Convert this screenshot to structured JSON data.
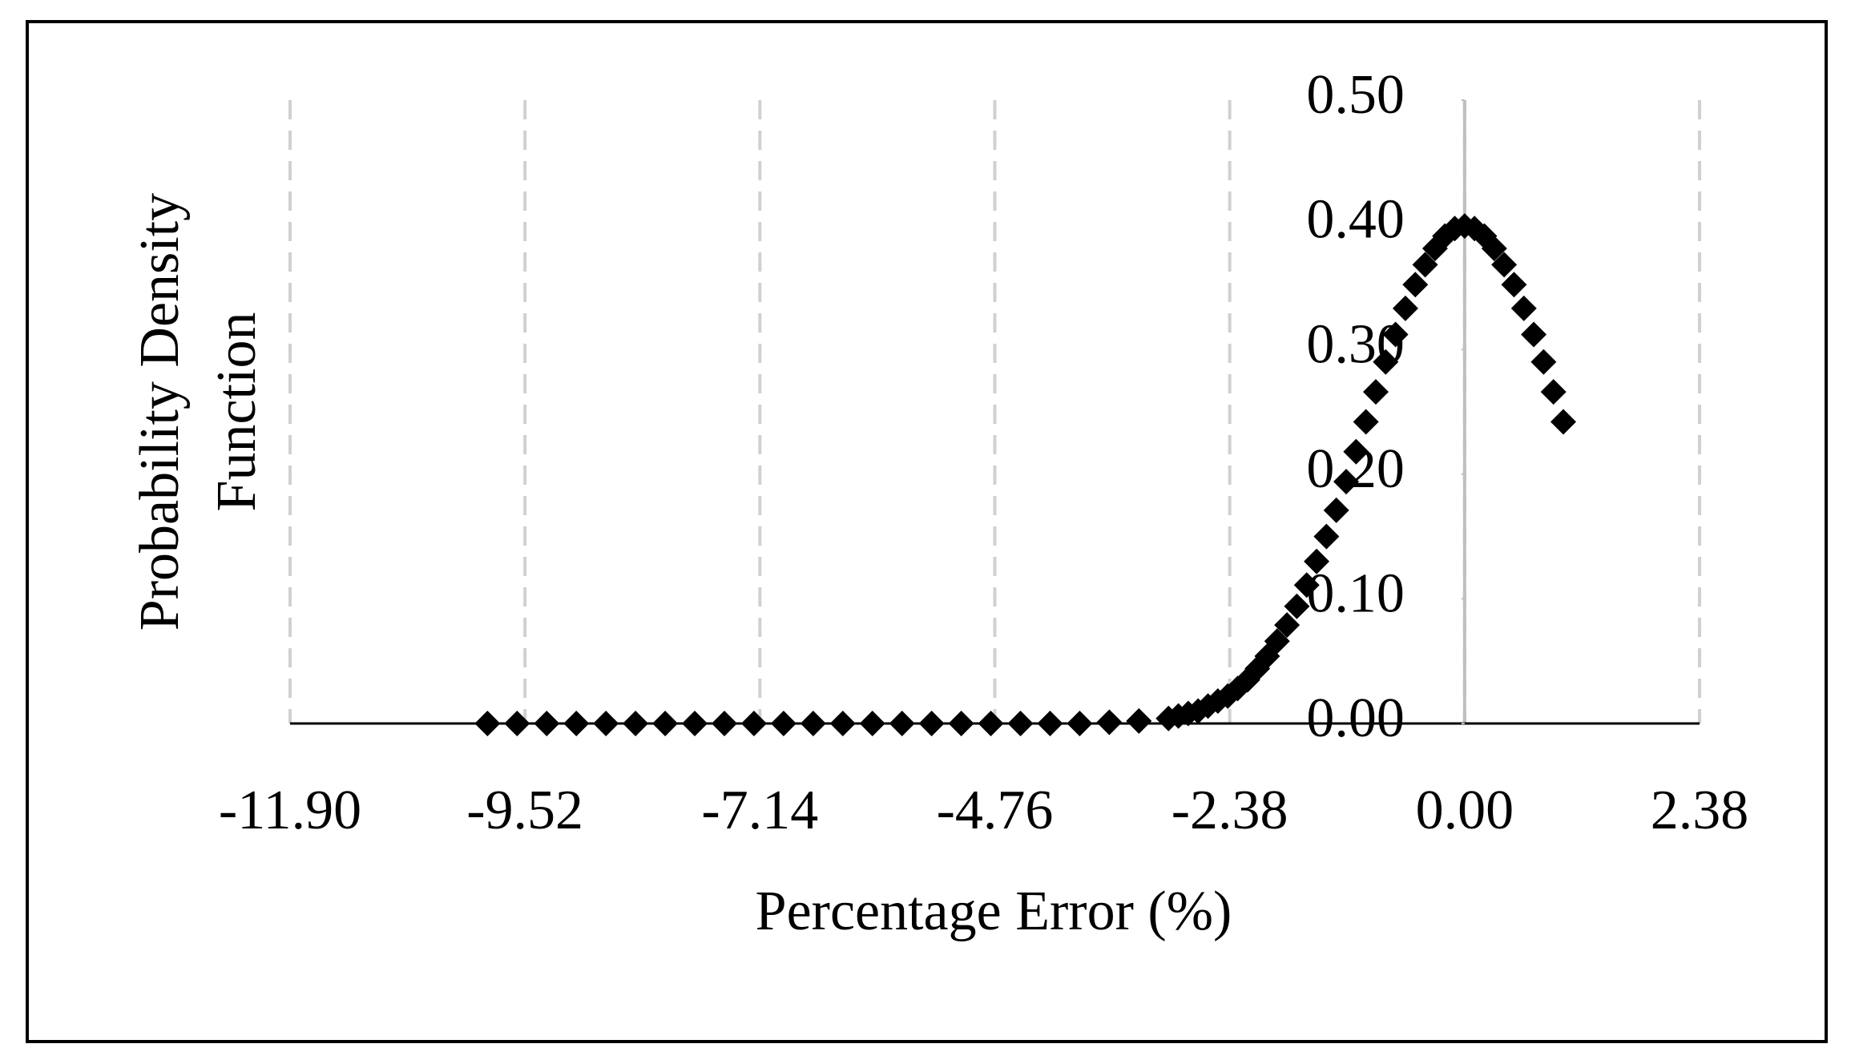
{
  "chart_data": {
    "type": "scatter",
    "xlabel": "Percentage Error (%)",
    "ylabel": "Probability Density Function",
    "series": [
      {
        "color": "#000000",
        "x": [
          -9.9,
          -9.6,
          -9.3,
          -9.0,
          -8.7,
          -8.4,
          -8.1,
          -7.8,
          -7.5,
          -7.2,
          -6.9,
          -6.6,
          -6.3,
          -6.0,
          -5.7,
          -5.4,
          -5.1,
          -4.8,
          -4.5,
          -4.2,
          -3.9,
          -3.6,
          -3.3,
          -3.0,
          -2.9,
          -2.8,
          -2.7,
          -2.6,
          -2.5,
          -2.4,
          -2.3,
          -2.2,
          -2.1,
          -2.0,
          -1.9,
          -1.8,
          -1.7,
          -1.6,
          -1.5,
          -1.4,
          -1.3,
          -1.2,
          -1.1,
          -1.0,
          -0.9,
          -0.8,
          -0.7,
          -0.6,
          -0.5,
          -0.4,
          -0.3,
          -0.2,
          -0.1,
          0,
          0.1,
          0.2,
          0.3,
          0.4,
          0.5,
          0.6,
          0.7,
          0.8,
          0.9,
          1.0
        ],
        "values": [
          0,
          0,
          0,
          0,
          0,
          0,
          0,
          0,
          0,
          0,
          0,
          0,
          0,
          0,
          0,
          0,
          0,
          0,
          0,
          0,
          0,
          0.001,
          0.002,
          0.004,
          0.006,
          0.008,
          0.01,
          0.014,
          0.018,
          0.022,
          0.028,
          0.035,
          0.044,
          0.054,
          0.066,
          0.079,
          0.094,
          0.111,
          0.13,
          0.15,
          0.171,
          0.194,
          0.218,
          0.242,
          0.266,
          0.29,
          0.312,
          0.333,
          0.352,
          0.368,
          0.381,
          0.391,
          0.397,
          0.399,
          0.397,
          0.391,
          0.381,
          0.368,
          0.352,
          0.333,
          0.312,
          0.29,
          0.266,
          0.242
        ]
      }
    ],
    "xlim": [
      -11.9,
      2.38
    ],
    "xticks": [
      {
        "value": -11.9,
        "label": "-11.90"
      },
      {
        "value": -9.52,
        "label": "-9.52"
      },
      {
        "value": -7.14,
        "label": "-7.14"
      },
      {
        "value": -4.76,
        "label": "-4.76"
      },
      {
        "value": -2.38,
        "label": "-2.38"
      },
      {
        "value": 0,
        "label": "0.00"
      },
      {
        "value": 2.38,
        "label": "2.38"
      }
    ],
    "ylim": [
      0,
      0.5
    ],
    "yticks": [
      {
        "value": 0,
        "label": "0.00"
      },
      {
        "value": 0.1,
        "label": "0.10"
      },
      {
        "value": 0.2,
        "label": "0.20"
      },
      {
        "value": 0.3,
        "label": "0.30"
      },
      {
        "value": 0.4,
        "label": "0.40"
      },
      {
        "value": 0.5,
        "label": "0.50"
      }
    ],
    "grid": true
  }
}
